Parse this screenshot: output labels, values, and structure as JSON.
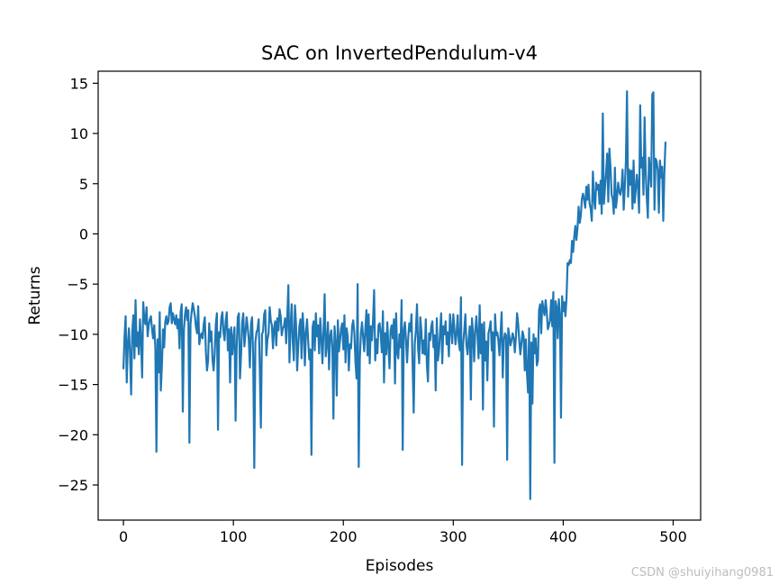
{
  "watermark": "CSDN @shuiyihang0981",
  "chart_data": {
    "type": "line",
    "title": "SAC on InvertedPendulum-v4",
    "xlabel": "Episodes",
    "ylabel": "Returns",
    "xlim": [
      -23,
      525
    ],
    "ylim": [
      -28.5,
      16.2
    ],
    "xticks": [
      0,
      100,
      200,
      300,
      400,
      500
    ],
    "xtick_labels": [
      "0",
      "100",
      "200",
      "300",
      "400",
      "500"
    ],
    "yticks": [
      15,
      10,
      5,
      0,
      -5,
      -10,
      -15,
      -20,
      -25
    ],
    "ytick_labels": [
      "15",
      "10",
      "5",
      "0",
      "−5",
      "−10",
      "−15",
      "−20",
      "−25"
    ],
    "grid": false,
    "legend": "none",
    "line_color": "#1f77b4",
    "series": [
      {
        "values": [
          -13.4,
          -10.2,
          -8.2,
          -14.8,
          -11.0,
          -9.4,
          -12.0,
          -16.0,
          -9.8,
          -8.1,
          -12.4,
          -6.6,
          -11.2,
          -9.8,
          -12.0,
          -8.5,
          -10.6,
          -14.3,
          -6.8,
          -8.5,
          -9.0,
          -7.3,
          -10.2,
          -9.1,
          -8.5,
          -8.2,
          -9.5,
          -10.4,
          -9.1,
          -11.3,
          -21.7,
          -10.5,
          -13.8,
          -7.8,
          -15.6,
          -13.0,
          -9.5,
          -11.3,
          -8.8,
          -8.2,
          -9.0,
          -8.7,
          -7.3,
          -6.9,
          -8.9,
          -7.9,
          -8.5,
          -9.0,
          -8.1,
          -9.4,
          -8.5,
          -11.4,
          -7.8,
          -7.0,
          -17.7,
          -9.6,
          -8.0,
          -7.3,
          -8.6,
          -7.6,
          -20.8,
          -9.0,
          -7.8,
          -6.9,
          -7.5,
          -8.2,
          -9.3,
          -9.9,
          -7.2,
          -11.0,
          -10.2,
          -9.9,
          -10.4,
          -9.0,
          -8.3,
          -11.8,
          -13.6,
          -12.6,
          -8.9,
          -10.7,
          -9.7,
          -12.5,
          -13.6,
          -11.9,
          -9.0,
          -7.9,
          -19.5,
          -9.8,
          -10.3,
          -8.4,
          -7.8,
          -9.8,
          -10.6,
          -8.7,
          -7.8,
          -11.6,
          -9.5,
          -14.8,
          -9.3,
          -12.0,
          -10.3,
          -9.3,
          -18.6,
          -11.2,
          -8.3,
          -7.9,
          -14.4,
          -12.0,
          -8.8,
          -7.9,
          -11.2,
          -9.9,
          -8.3,
          -9.3,
          -10.5,
          -13.3,
          -9.0,
          -8.3,
          -12.2,
          -23.3,
          -10.8,
          -9.8,
          -9.5,
          -8.5,
          -13.5,
          -19.3,
          -10.0,
          -9.7,
          -8.0,
          -7.6,
          -12.1,
          -10.5,
          -9.9,
          -7.3,
          -8.6,
          -9.1,
          -11.4,
          -9.4,
          -8.7,
          -11.1,
          -8.4,
          -9.6,
          -7.5,
          -8.2,
          -10.1,
          -9.4,
          -9.2,
          -8.4,
          -10.9,
          -8.3,
          -5.1,
          -12.8,
          -9.3,
          -7.0,
          -10.7,
          -12.6,
          -7.1,
          -9.0,
          -13.6,
          -11.1,
          -9.2,
          -8.5,
          -12.4,
          -7.9,
          -9.6,
          -13.1,
          -9.8,
          -8.5,
          -10.6,
          -12.5,
          -11.5,
          -22.0,
          -9.3,
          -8.7,
          -11.6,
          -7.9,
          -10.2,
          -9.1,
          -11.9,
          -8.4,
          -10.3,
          -12.9,
          -9.7,
          -6.0,
          -12.2,
          -11.0,
          -8.8,
          -13.5,
          -10.2,
          -9.6,
          -11.2,
          -18.4,
          -9.2,
          -10.8,
          -16.1,
          -8.6,
          -11.7,
          -10.6,
          -9.4,
          -8.9,
          -11.5,
          -8.1,
          -12.8,
          -9.4,
          -10.2,
          -13.6,
          -11.0,
          -11.4,
          -9.2,
          -8.6,
          -9.8,
          -12.7,
          -14.4,
          -5.0,
          -23.2,
          -12.5,
          -9.9,
          -8.8,
          -10.3,
          -11.7,
          -9.5,
          -7.6,
          -12.1,
          -8.0,
          -12.9,
          -9.2,
          -10.6,
          -8.7,
          -5.6,
          -12.6,
          -10.5,
          -11.9,
          -9.1,
          -8.9,
          -10.0,
          -11.8,
          -7.7,
          -14.8,
          -9.9,
          -12.0,
          -8.8,
          -11.2,
          -13.4,
          -9.6,
          -9.1,
          -10.4,
          -8.5,
          -14.9,
          -7.9,
          -11.8,
          -12.4,
          -10.0,
          -11.3,
          -6.6,
          -21.5,
          -9.6,
          -8.8,
          -10.6,
          -12.8,
          -10.4,
          -8.9,
          -9.7,
          -8.0,
          -13.0,
          -17.8,
          -10.9,
          -9.6,
          -7.0,
          -11.4,
          -12.9,
          -8.3,
          -9.7,
          -11.9,
          -10.6,
          -12.0,
          -8.5,
          -13.1,
          -14.7,
          -9.9,
          -10.6,
          -9.2,
          -8.7,
          -11.3,
          -10.1,
          -15.6,
          -8.4,
          -12.6,
          -11.7,
          -9.7,
          -7.9,
          -12.9,
          -9.2,
          -10.0,
          -8.7,
          -11.0,
          -9.8,
          -12.2,
          -8.0,
          -9.4,
          -10.9,
          -8.0,
          -9.4,
          -11.0,
          -9.9,
          -8.1,
          -10.8,
          -11.6,
          -6.3,
          -23.0,
          -10.9,
          -9.6,
          -8.0,
          -11.1,
          -12.0,
          -10.4,
          -9.2,
          -16.5,
          -8.4,
          -9.9,
          -12.7,
          -9.6,
          -8.2,
          -10.0,
          -12.4,
          -7.1,
          -11.9,
          -9.0,
          -17.5,
          -8.8,
          -12.6,
          -10.7,
          -14.6,
          -9.9,
          -9.4,
          -8.7,
          -11.6,
          -9.8,
          -19.2,
          -8.0,
          -10.1,
          -9.8,
          -10.6,
          -12.1,
          -9.9,
          -7.8,
          -14.3,
          -10.6,
          -9.9,
          -10.1,
          -22.5,
          -9.4,
          -10.2,
          -11.1,
          -10.6,
          -9.9,
          -10.4,
          -11.8,
          -10.2,
          -7.9,
          -8.9,
          -10.6,
          -12.0,
          -10.9,
          -9.7,
          -10.2,
          -13.6,
          -10.5,
          -13.8,
          -15.8,
          -9.4,
          -26.4,
          -10.8,
          -16.9,
          -10.0,
          -11.9,
          -10.4,
          -13.1,
          -12.6,
          -7.6,
          -7.0,
          -9.9,
          -6.7,
          -7.5,
          -8.1,
          -6.6,
          -7.7,
          -9.5,
          -9.1,
          -8.6,
          -6.6,
          -9.2,
          -5.8,
          -22.8,
          -6.7,
          -7.3,
          -10.4,
          -6.5,
          -7.9,
          -18.3,
          -6.2,
          -7.7,
          -6.8,
          -8.2,
          -6.4,
          -2.9,
          -3.1,
          -2.6,
          -2.9,
          -0.7,
          -1.8,
          -0.3,
          0.8,
          -0.6,
          0.6,
          2.7,
          1.1,
          1.8,
          3.5,
          4.0,
          3.4,
          2.6,
          4.7,
          3.4,
          4.9,
          3.0,
          2.5,
          1.3,
          6.2,
          3.5,
          2.5,
          5.1,
          4.4,
          4.9,
          3.0,
          5.3,
          2.0,
          12.0,
          3.0,
          4.6,
          6.1,
          8.0,
          3.2,
          8.5,
          6.7,
          3.9,
          3.5,
          2.0,
          6.6,
          2.6,
          3.7,
          5.1,
          4.2,
          3.9,
          4.6,
          6.4,
          2.4,
          4.6,
          7.2,
          14.2,
          3.7,
          6.4,
          4.9,
          6.3,
          2.5,
          7.3,
          3.1,
          4.4,
          5.9,
          4.6,
          2.1,
          12.8,
          6.6,
          7.6,
          3.9,
          11.6,
          6.2,
          3.6,
          1.6,
          7.6,
          6.2,
          4.7,
          13.9,
          14.1,
          2.4,
          7.5,
          7.2,
          6.3,
          2.1,
          7.3,
          5.6,
          6.7,
          1.3,
          6.0,
          9.1
        ]
      }
    ]
  }
}
